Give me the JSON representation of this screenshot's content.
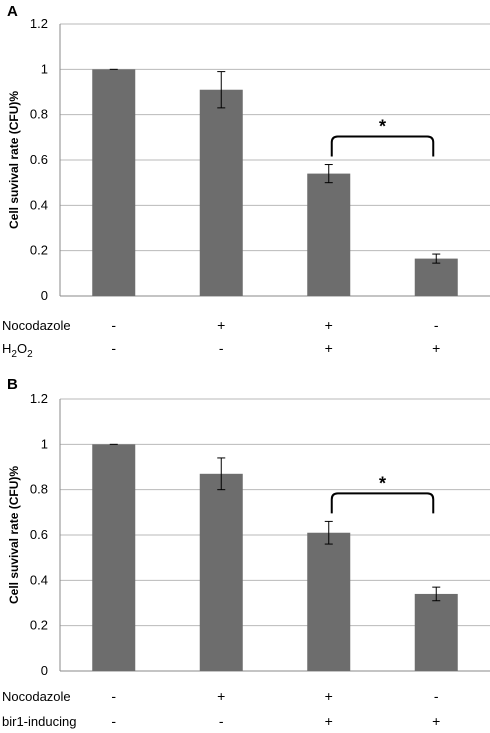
{
  "chart_data": [
    {
      "type": "bar",
      "panel_label": "A",
      "ylabel": "Cell suvival rate (CFU)%",
      "ylim": [
        0,
        1.2
      ],
      "yticks": [
        "0",
        "0.2",
        "0.4",
        "0.6",
        "0.8",
        "1",
        "1.2"
      ],
      "grid": true,
      "bar_color": "#6d6d6d",
      "values": [
        1.0,
        0.91,
        0.54,
        0.165
      ],
      "errors": [
        0.0,
        0.08,
        0.04,
        0.02
      ],
      "significance": {
        "from": 2,
        "to": 3,
        "label": "*"
      },
      "conditions": [
        {
          "name": "Nocodazole",
          "name_sub": "",
          "name_tail": "",
          "signs": [
            "-",
            "+",
            "+",
            "-"
          ]
        },
        {
          "name": "H",
          "name_sub": "2",
          "name_tail": "O2",
          "signs": [
            "-",
            "-",
            "+",
            "+"
          ]
        }
      ]
    },
    {
      "type": "bar",
      "panel_label": "B",
      "ylabel": "Cell suvival rate (CFU)%",
      "ylim": [
        0,
        1.2
      ],
      "yticks": [
        "0",
        "0.2",
        "0.4",
        "0.6",
        "0.8",
        "1",
        "1.2"
      ],
      "grid": true,
      "bar_color": "#6d6d6d",
      "values": [
        1.0,
        0.87,
        0.61,
        0.34
      ],
      "errors": [
        0.0,
        0.07,
        0.05,
        0.03
      ],
      "significance": {
        "from": 2,
        "to": 3,
        "label": "*"
      },
      "conditions": [
        {
          "name": "Nocodazole",
          "name_sub": "",
          "name_tail": "",
          "signs": [
            "-",
            "+",
            "+",
            "-"
          ]
        },
        {
          "name": "bir1-inducing",
          "name_sub": "",
          "name_tail": "",
          "signs": [
            "-",
            "-",
            "+",
            "+"
          ]
        }
      ]
    }
  ]
}
